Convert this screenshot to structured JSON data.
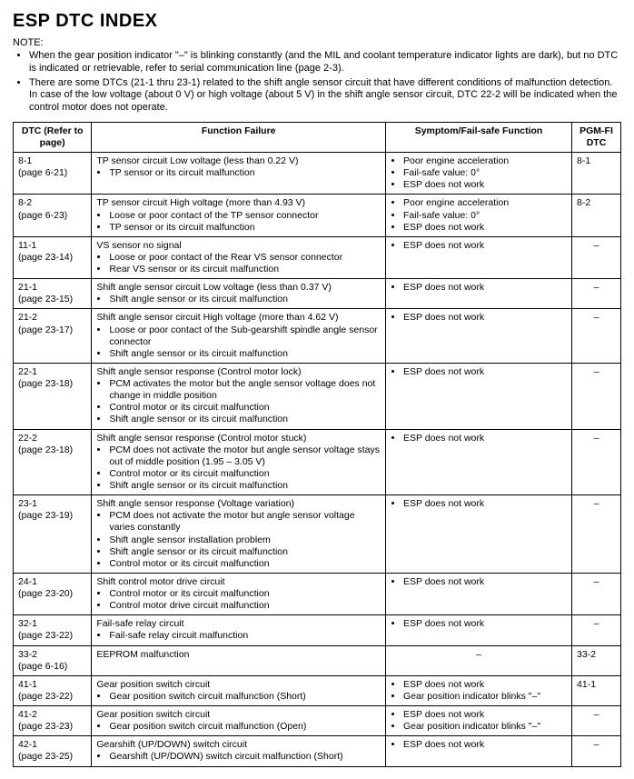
{
  "title": "ESP DTC INDEX",
  "noteLabel": "NOTE:",
  "notes": [
    "When the gear position indicator \"–\" is blinking constantly (and the MIL and coolant temperature indicator lights are dark), but no DTC is indicated or retrievable, refer to serial communication line (page 2-3).",
    "There are some DTCs (21-1 thru 23-1) related to the shift angle sensor circuit that have different conditions of malfunction detection. In case of the low voltage (about 0 V) or high voltage (about 5 V) in the shift angle sensor circuit, DTC 22-2 will be indicated when the control motor does not operate."
  ],
  "headers": {
    "dtc": "DTC\n(Refer to page)",
    "func": "Function Failure",
    "symp": "Symptom/Fail-safe Function",
    "pgm": "PGM-FI DTC"
  },
  "rows": [
    {
      "dtc": {
        "code": "8-1",
        "page": "(page 6-21)"
      },
      "funcLead": "TP sensor circuit Low voltage (less than 0.22 V)",
      "funcItems": [
        "TP sensor or its circuit malfunction"
      ],
      "sympItems": [
        "Poor engine acceleration",
        "Fail-safe value: 0°",
        "ESP does not work"
      ],
      "pgm": "8-1"
    },
    {
      "dtc": {
        "code": "8-2",
        "page": "(page 6-23)"
      },
      "funcLead": "TP sensor circuit High voltage (more than 4.93 V)",
      "funcItems": [
        "Loose or poor contact of the TP sensor connector",
        "TP sensor or its circuit malfunction"
      ],
      "sympItems": [
        "Poor engine acceleration",
        "Fail-safe value: 0°",
        "ESP does not work"
      ],
      "pgm": "8-2"
    },
    {
      "dtc": {
        "code": "11-1",
        "page": "(page 23-14)"
      },
      "funcLead": "VS sensor no signal",
      "funcItems": [
        "Loose or poor contact of the Rear VS sensor connector",
        "Rear VS sensor or its circuit malfunction"
      ],
      "sympItems": [
        "ESP does not work"
      ],
      "pgm": "–"
    },
    {
      "dtc": {
        "code": "21-1",
        "page": "(page 23-15)"
      },
      "funcLead": "Shift angle sensor circuit Low voltage (less than 0.37 V)",
      "funcItems": [
        "Shift angle sensor or its circuit malfunction"
      ],
      "sympItems": [
        "ESP does not work"
      ],
      "pgm": "–"
    },
    {
      "dtc": {
        "code": "21-2",
        "page": "(page 23-17)"
      },
      "funcLead": "Shift angle sensor circuit High voltage (more than 4.62 V)",
      "funcItems": [
        "Loose or poor contact of the Sub-gearshift spindle angle sensor connector",
        "Shift angle sensor or its circuit malfunction"
      ],
      "sympItems": [
        "ESP does not work"
      ],
      "pgm": "–"
    },
    {
      "dtc": {
        "code": "22-1",
        "page": "(page 23-18)"
      },
      "funcLead": "Shift angle sensor response (Control motor lock)",
      "funcItems": [
        "PCM activates the motor but the angle sensor voltage does not change in middle position",
        "Control motor or its circuit malfunction",
        "Shift angle sensor or its circuit malfunction"
      ],
      "sympItems": [
        "ESP does not work"
      ],
      "pgm": "–"
    },
    {
      "dtc": {
        "code": "22-2",
        "page": "(page 23-18)"
      },
      "funcLead": "Shift angle sensor response (Control motor stuck)",
      "funcItems": [
        "PCM does not activate the motor but angle sensor voltage stays out of middle position (1.95 – 3.05 V)",
        "Control motor or its circuit malfunction",
        "Shift angle sensor or its circuit malfunction"
      ],
      "sympItems": [
        "ESP does not work"
      ],
      "pgm": "–"
    },
    {
      "dtc": {
        "code": "23-1",
        "page": "(page 23-19)"
      },
      "funcLead": "Shift angle sensor response (Voltage variation)",
      "funcItems": [
        "PCM does not activate the motor but angle sensor voltage varies constantly",
        "Shift angle sensor installation problem",
        "Shift angle sensor or its circuit malfunction",
        "Control motor or its circuit malfunction"
      ],
      "sympItems": [
        "ESP does not work"
      ],
      "pgm": "–"
    },
    {
      "dtc": {
        "code": "24-1",
        "page": "(page 23-20)"
      },
      "funcLead": "Shift control motor drive circuit",
      "funcItems": [
        "Control motor or its circuit malfunction",
        "Control motor drive circuit malfunction"
      ],
      "sympItems": [
        "ESP does not work"
      ],
      "pgm": "–"
    },
    {
      "dtc": {
        "code": "32-1",
        "page": "(page 23-22)"
      },
      "funcLead": "Fail-safe relay circuit",
      "funcItems": [
        "Fail-safe relay circuit malfunction"
      ],
      "sympItems": [
        "ESP does not work"
      ],
      "pgm": "–"
    },
    {
      "dtc": {
        "code": "33-2",
        "page": "(page 6-16)"
      },
      "funcLead": "EEPROM malfunction",
      "funcItems": [],
      "sympPlain": "–",
      "pgm": "33-2"
    },
    {
      "dtc": {
        "code": "41-1",
        "page": "(page 23-22)"
      },
      "funcLead": "Gear position switch circuit",
      "funcItems": [
        "Gear position switch circuit malfunction (Short)"
      ],
      "sympItems": [
        "ESP does not work",
        "Gear position indicator blinks \"–\""
      ],
      "pgm": "41-1"
    },
    {
      "dtc": {
        "code": "41-2",
        "page": "(page 23-23)"
      },
      "funcLead": "Gear position switch circuit",
      "funcItems": [
        "Gear position switch circuit malfunction (Open)"
      ],
      "sympItems": [
        "ESP does not work",
        "Gear position indicator blinks \"–\""
      ],
      "pgm": "–"
    },
    {
      "dtc": {
        "code": "42-1",
        "page": "(page 23-25)"
      },
      "funcLead": "Gearshift (UP/DOWN) switch circuit",
      "funcItems": [
        "Gearshift (UP/DOWN) switch circuit malfunction (Short)"
      ],
      "sympItems": [
        "ESP does not work"
      ],
      "pgm": "–"
    }
  ]
}
